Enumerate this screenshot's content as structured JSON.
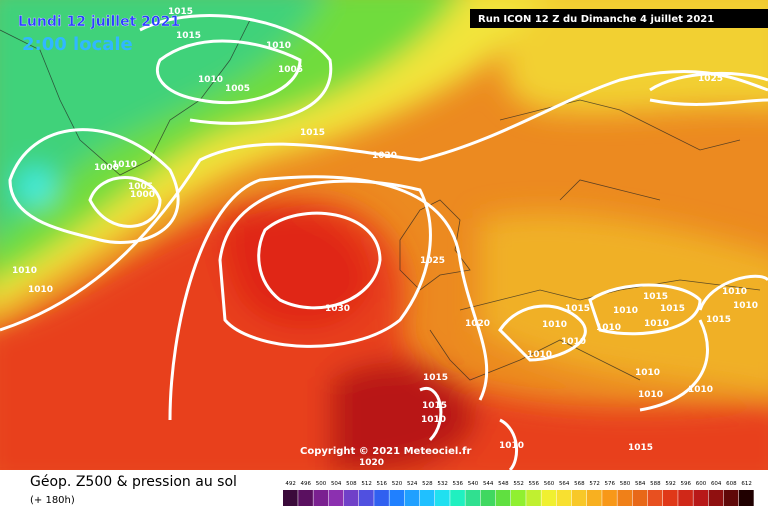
{
  "header": {
    "date": "Lundi 12 juillet 2021",
    "time": "2:00 locale",
    "run": "Run ICON 12 Z du Dimanche 4 juillet 2021"
  },
  "map": {
    "copyright": "Copyright © 2021 Meteociel.fr",
    "isobar_labels": [
      "1015",
      "1015",
      "1010",
      "1005",
      "1005",
      "1010",
      "1015",
      "1020",
      "1025",
      "1000",
      "1010",
      "1005",
      "1000",
      "1010",
      "1010",
      "1030",
      "1025",
      "1020",
      "1015",
      "1015",
      "1010",
      "1010",
      "1015",
      "1010",
      "1010",
      "1010",
      "1010",
      "1010",
      "1010",
      "1010",
      "1010",
      "1010",
      "1015",
      "1015",
      "1015",
      "1010",
      "1010",
      "1015",
      "1020"
    ]
  },
  "footer": {
    "title": "Géop. Z500 & pression au sol",
    "lead": "(+ 180h)"
  },
  "color_scale": {
    "labels": [
      "492",
      "496",
      "500",
      "504",
      "508",
      "512",
      "516",
      "520",
      "524",
      "528",
      "532",
      "536",
      "540",
      "544",
      "548",
      "552",
      "556",
      "560",
      "564",
      "568",
      "572",
      "576",
      "580",
      "584",
      "588",
      "592",
      "596",
      "600",
      "604",
      "608",
      "612"
    ],
    "colors": [
      "#3a0a3a",
      "#5a1060",
      "#7a2090",
      "#8c30b0",
      "#7040c8",
      "#5050e0",
      "#3060f0",
      "#2080ff",
      "#20a0ff",
      "#20c0ff",
      "#20e0f0",
      "#20f0c0",
      "#30e090",
      "#40d860",
      "#60e040",
      "#90f030",
      "#c0f030",
      "#f0f030",
      "#f8e030",
      "#f8c828",
      "#f8b020",
      "#f89818",
      "#f08018",
      "#e86818",
      "#e85020",
      "#e03818",
      "#d02818",
      "#b81818",
      "#901010",
      "#600808",
      "#200000"
    ]
  }
}
